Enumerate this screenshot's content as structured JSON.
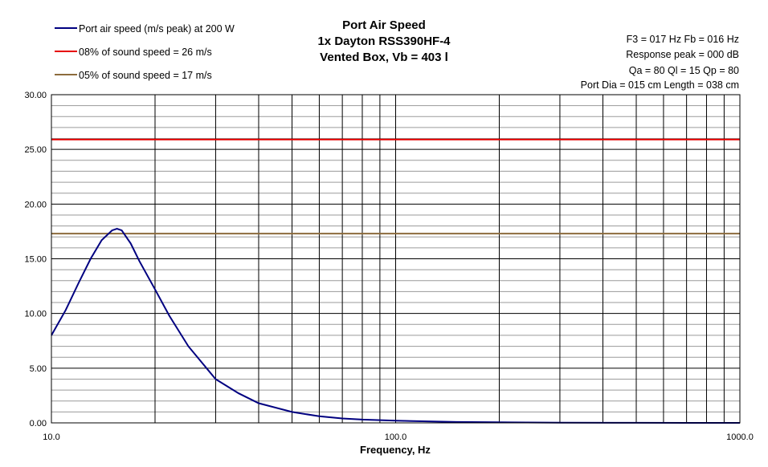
{
  "chart_data": {
    "type": "line",
    "title_lines": [
      "Port Air Speed",
      "1x Dayton RSS390HF-4",
      "Vented Box, Vb = 403 l"
    ],
    "xlabel": "Frequency, Hz",
    "ylabel": "",
    "x_scale": "log",
    "xlim": [
      10,
      1000
    ],
    "ylim": [
      0,
      30
    ],
    "x_tick_labels": [
      "10.0",
      "100.0",
      "1000.0"
    ],
    "y_ticks": [
      0,
      5,
      10,
      15,
      20,
      25,
      30
    ],
    "y_tick_labels": [
      "0.00",
      "5.00",
      "10.00",
      "15.00",
      "20.00",
      "25.00",
      "30.00"
    ],
    "grid": true,
    "legend_position": "top-left",
    "info_lines": [
      "F3 = 017 Hz  Fb = 016 Hz",
      "Response peak = 000 dB",
      "Qa = 80  Ql = 15  Qp = 80",
      "Port Dia = 015 cm  Length = 038 cm"
    ],
    "series": [
      {
        "name": "Port air speed (m/s peak) at 200 W",
        "color": "#000080",
        "x": [
          10,
          11,
          12,
          13,
          14,
          15,
          15.5,
          16,
          17,
          18,
          20,
          22,
          25,
          30,
          35,
          40,
          50,
          60,
          70,
          80,
          100,
          150,
          200,
          300,
          500,
          700,
          1000
        ],
        "y": [
          8.0,
          10.3,
          12.8,
          15.0,
          16.7,
          17.6,
          17.75,
          17.6,
          16.4,
          14.8,
          12.2,
          9.8,
          7.0,
          4.0,
          2.7,
          1.8,
          1.0,
          0.6,
          0.4,
          0.3,
          0.2,
          0.08,
          0.05,
          0.02,
          0.01,
          0.0,
          0.0
        ]
      },
      {
        "name": "08% of sound speed = 26 m/s",
        "color": "#e60000",
        "x": [
          10,
          1000
        ],
        "y": [
          25.9,
          25.9
        ]
      },
      {
        "name": "05% of sound speed = 17 m/s",
        "color": "#8c6b3c",
        "x": [
          10,
          1000
        ],
        "y": [
          17.3,
          17.3
        ]
      }
    ]
  }
}
